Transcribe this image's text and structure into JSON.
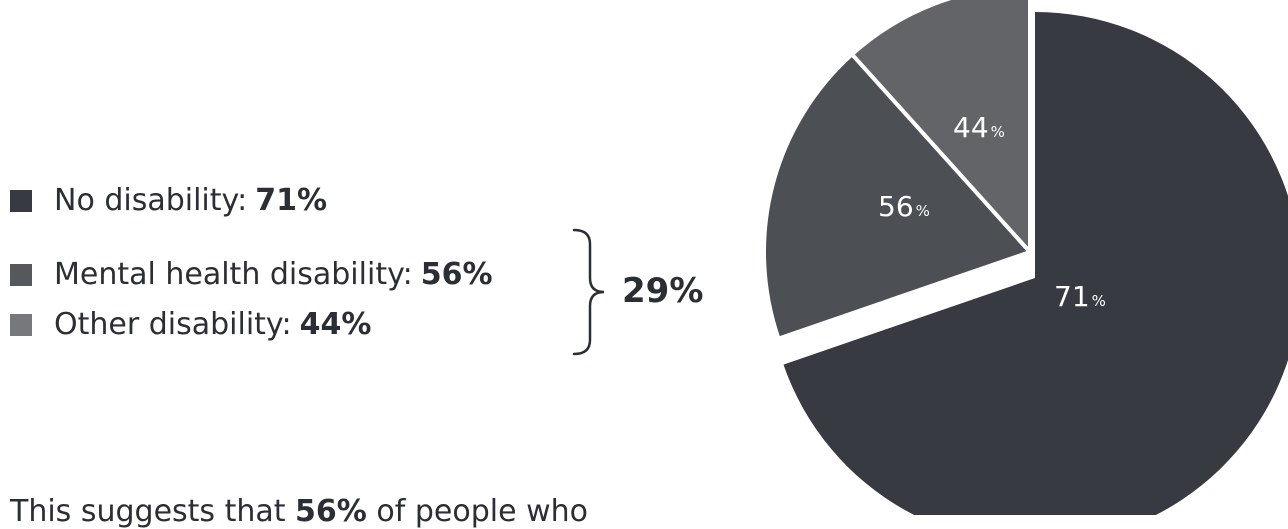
{
  "chart_data": {
    "type": "pie",
    "title": "",
    "slices": [
      {
        "label": "No disability",
        "value": 71,
        "display": "71%",
        "color": "#373a41"
      },
      {
        "label": "Mental health disability",
        "value": 56,
        "display": "56%",
        "color": "#4c4f54"
      },
      {
        "label": "Other disability",
        "value": 44,
        "display": "44%",
        "color": "#626467"
      }
    ],
    "slice_labels": [
      {
        "number": "71",
        "unit": "%"
      },
      {
        "number": "56",
        "unit": "%"
      },
      {
        "number": "44",
        "unit": "%"
      }
    ],
    "legend": {
      "placement": "left",
      "items": [
        {
          "label": "No disability:",
          "value": "71%",
          "color": "#373a41"
        },
        {
          "label": "Mental health disability:",
          "value": "56%",
          "color": "#55585d"
        },
        {
          "label": "Other disability:",
          "value": "44%",
          "color": "#76787c"
        }
      ]
    },
    "group_total": "29%"
  },
  "footer": {
    "lead": "This suggests that ",
    "highlight": "56%",
    "rest": " of people who"
  }
}
